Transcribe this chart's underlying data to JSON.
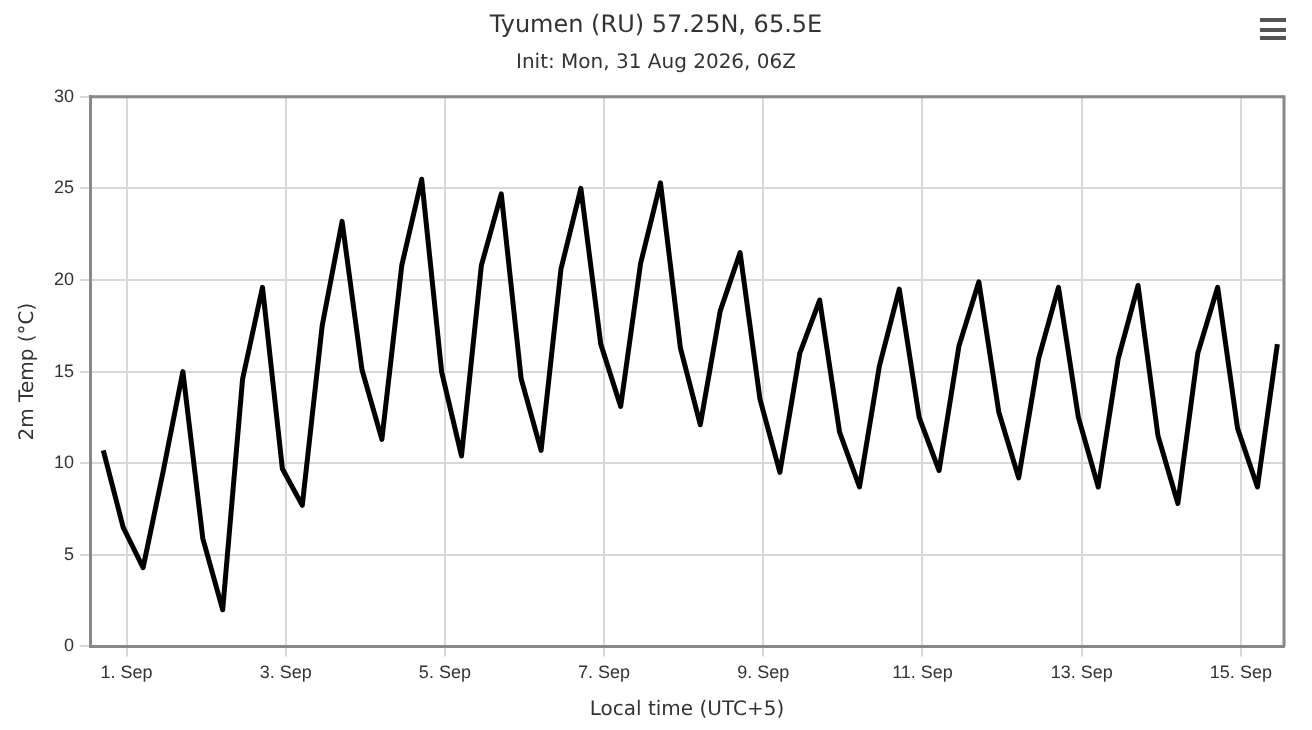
{
  "chart_data": {
    "type": "line",
    "title": "Tyumen (RU) 57.25N, 65.5E",
    "subtitle": "Init: Mon, 31 Aug 2026, 06Z",
    "xlabel": "Local time (UTC+5)",
    "ylabel": "2m Temp (°C)",
    "x": [
      "2026-08-31T17:00",
      "2026-08-31T23:00",
      "2026-09-01T05:00",
      "2026-09-01T11:00",
      "2026-09-01T17:00",
      "2026-09-01T23:00",
      "2026-09-02T05:00",
      "2026-09-02T11:00",
      "2026-09-02T17:00",
      "2026-09-02T23:00",
      "2026-09-03T05:00",
      "2026-09-03T11:00",
      "2026-09-03T17:00",
      "2026-09-03T23:00",
      "2026-09-04T05:00",
      "2026-09-04T11:00",
      "2026-09-04T17:00",
      "2026-09-04T23:00",
      "2026-09-05T05:00",
      "2026-09-05T11:00",
      "2026-09-05T17:00",
      "2026-09-05T23:00",
      "2026-09-06T05:00",
      "2026-09-06T11:00",
      "2026-09-06T17:00",
      "2026-09-06T23:00",
      "2026-09-07T05:00",
      "2026-09-07T11:00",
      "2026-09-07T17:00",
      "2026-09-07T23:00",
      "2026-09-08T05:00",
      "2026-09-08T11:00",
      "2026-09-08T17:00",
      "2026-09-08T23:00",
      "2026-09-09T05:00",
      "2026-09-09T11:00",
      "2026-09-09T17:00",
      "2026-09-09T23:00",
      "2026-09-10T05:00",
      "2026-09-10T11:00",
      "2026-09-10T17:00",
      "2026-09-10T23:00",
      "2026-09-11T05:00",
      "2026-09-11T11:00",
      "2026-09-11T17:00",
      "2026-09-11T23:00",
      "2026-09-12T05:00",
      "2026-09-12T11:00",
      "2026-09-12T17:00",
      "2026-09-12T23:00",
      "2026-09-13T05:00",
      "2026-09-13T11:00",
      "2026-09-13T17:00",
      "2026-09-13T23:00",
      "2026-09-14T05:00",
      "2026-09-14T11:00",
      "2026-09-14T17:00",
      "2026-09-14T23:00",
      "2026-09-15T05:00",
      "2026-09-15T11:00"
    ],
    "series": [
      {
        "color": "#000000",
        "values": [
          10.7,
          6.5,
          4.3,
          9.5,
          15.0,
          5.9,
          2.0,
          14.6,
          19.6,
          9.7,
          7.7,
          17.5,
          23.2,
          15.1,
          11.3,
          20.8,
          25.5,
          15.0,
          10.4,
          20.8,
          24.7,
          14.6,
          10.7,
          20.6,
          25.0,
          16.5,
          13.1,
          20.9,
          25.3,
          16.3,
          12.1,
          18.3,
          21.5,
          13.5,
          9.5,
          16.0,
          18.9,
          11.7,
          8.7,
          15.3,
          19.5,
          12.5,
          9.6,
          16.4,
          19.9,
          12.8,
          9.2,
          15.7,
          19.6,
          12.5,
          8.7,
          15.7,
          19.7,
          11.5,
          7.8,
          16.0,
          19.6,
          11.9,
          8.7,
          16.5
        ]
      }
    ],
    "xlim": [
      "2026-08-31T13:00",
      "2026-09-15T13:00"
    ],
    "xticks": [
      {
        "value": "2026-09-01",
        "label": "1. Sep"
      },
      {
        "value": "2026-09-03",
        "label": "3. Sep"
      },
      {
        "value": "2026-09-05",
        "label": "5. Sep"
      },
      {
        "value": "2026-09-07",
        "label": "7. Sep"
      },
      {
        "value": "2026-09-09",
        "label": "9. Sep"
      },
      {
        "value": "2026-09-11",
        "label": "11. Sep"
      },
      {
        "value": "2026-09-13",
        "label": "13. Sep"
      },
      {
        "value": "2026-09-15",
        "label": "15. Sep"
      }
    ],
    "ylim": [
      0,
      30
    ],
    "yticks": [
      0,
      5,
      10,
      15,
      20,
      25,
      30
    ],
    "grid": true,
    "legend": false,
    "marker": "none",
    "line_style": "solid"
  }
}
